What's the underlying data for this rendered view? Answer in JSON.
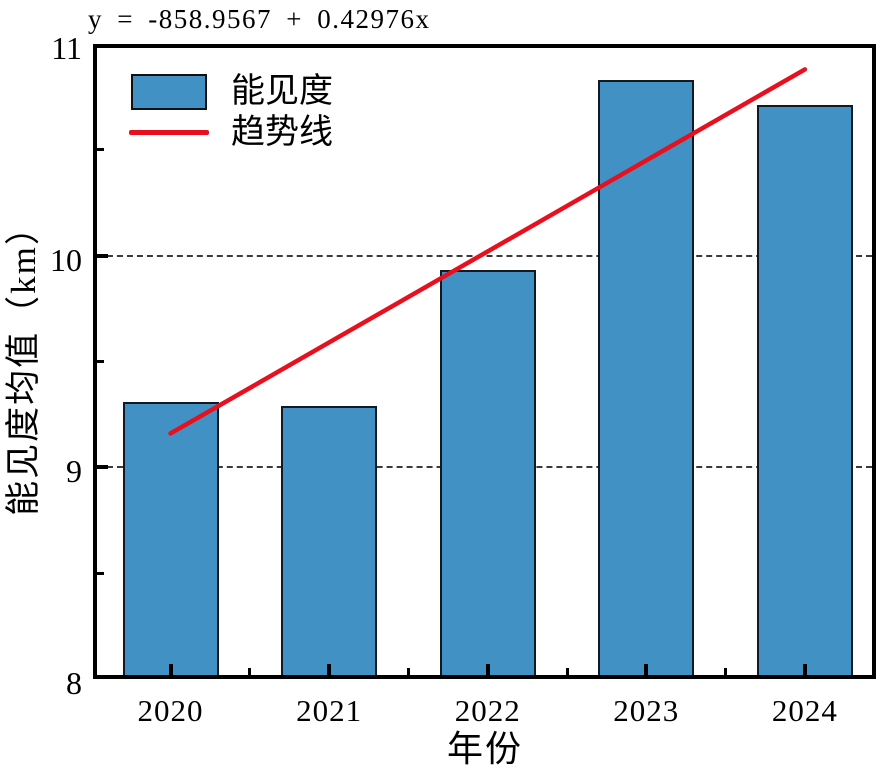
{
  "chart_data": {
    "type": "bar",
    "title": "y = -858.9567 + 0.42976x",
    "xlabel": "年份",
    "ylabel": "能见度均值（km）",
    "categories": [
      "2020",
      "2021",
      "2022",
      "2023",
      "2024"
    ],
    "series": [
      {
        "name": "能见度",
        "type": "bar",
        "values": [
          9.31,
          9.29,
          9.93,
          10.83,
          10.71
        ],
        "color": "#4191c5",
        "border_color": "#111a20"
      },
      {
        "name": "趋势线",
        "type": "line",
        "equation": "y = -858.9567 + 0.42976x",
        "points": [
          {
            "x": "2020",
            "y": 9.16
          },
          {
            "x": "2024",
            "y": 10.88
          }
        ],
        "color": "#e8101e"
      }
    ],
    "ylim": [
      8,
      11
    ],
    "yticks": [
      8,
      9,
      10,
      11
    ],
    "minor_yticks": [
      8.5,
      9.5,
      10.5
    ],
    "gridlines_y": [
      9,
      10
    ],
    "grid_style": "dashed",
    "legend_position": "top-left",
    "axis_color": "#000000",
    "background_color": "#ffffff"
  }
}
